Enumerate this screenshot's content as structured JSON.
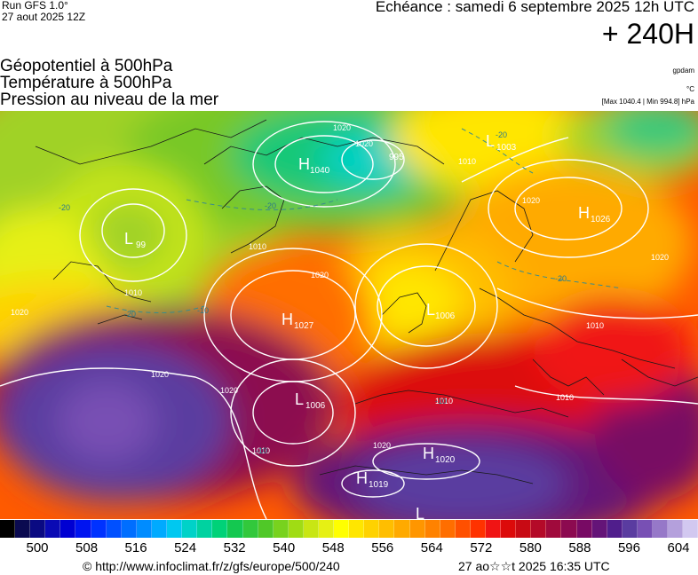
{
  "header": {
    "run_label": "Run GFS 1.0°",
    "run_date": "27 aout 2025 12Z",
    "echeance": "Echéance : samedi 6 septembre 2025 12h UTC",
    "lead_time": "+ 240H"
  },
  "parameters": [
    "Géopotentiel à 500hPa",
    "Température à 500hPa",
    "Pression au niveau de la mer"
  ],
  "units": {
    "geopotential": "gpdam",
    "temperature": "°C",
    "pressure_range": "[Max 1040.4 | Min 994.8] hPa"
  },
  "map": {
    "pressure_centers": [
      {
        "type": "H",
        "value": "1040"
      },
      {
        "type": "L",
        "value": "995"
      },
      {
        "type": "L",
        "value": "1003"
      },
      {
        "type": "L",
        "value": "99"
      },
      {
        "type": "H",
        "value": "1026"
      },
      {
        "type": "H",
        "value": "1027"
      },
      {
        "type": "L",
        "value": "1006"
      },
      {
        "type": "L",
        "value": "1006"
      },
      {
        "type": "H",
        "value": "1020"
      },
      {
        "type": "H",
        "value": "1019"
      },
      {
        "type": "L",
        "value": ""
      }
    ],
    "isobar_labels": [
      "1020",
      "1010",
      "1020",
      "1020",
      "1020",
      "1010",
      "1020",
      "1010",
      "1010",
      "1020",
      "1010",
      "1020",
      "1010",
      "1020",
      "1010",
      "1020"
    ],
    "temperature_labels": [
      "-20",
      "-20",
      "-20",
      "-20",
      "-20",
      "-10",
      "-10",
      "-10"
    ]
  },
  "colorbar": {
    "colors": [
      "#000000",
      "#0a0a50",
      "#0a0a82",
      "#0a0ab4",
      "#0000d2",
      "#0014f0",
      "#0032ff",
      "#0050ff",
      "#006eff",
      "#008cff",
      "#00aaff",
      "#00c8f0",
      "#00d2c8",
      "#00d2a0",
      "#00d278",
      "#14c850",
      "#32c83c",
      "#50c828",
      "#78d21e",
      "#a0dc14",
      "#c8e614",
      "#e6f014",
      "#ffff00",
      "#ffe600",
      "#ffd200",
      "#ffbe00",
      "#ffaa00",
      "#ff9600",
      "#ff8200",
      "#ff6e00",
      "#ff5000",
      "#ff3200",
      "#f01414",
      "#dc0a0a",
      "#c80a14",
      "#b40a28",
      "#a00a3c",
      "#8c0a50",
      "#780a64",
      "#641478",
      "#501e8c",
      "#5a3ca0",
      "#7850b4",
      "#9678c8",
      "#b4a0dc",
      "#d2c8f0"
    ],
    "ticks": [
      "500",
      "508",
      "516",
      "524",
      "532",
      "540",
      "548",
      "556",
      "564",
      "572",
      "580",
      "588",
      "596",
      "604"
    ]
  },
  "footer": {
    "url": "© http://www.infoclimat.fr/z/gfs/europe/500/240",
    "timestamp": "27 ao☆☆t 2025 16:35 UTC"
  }
}
